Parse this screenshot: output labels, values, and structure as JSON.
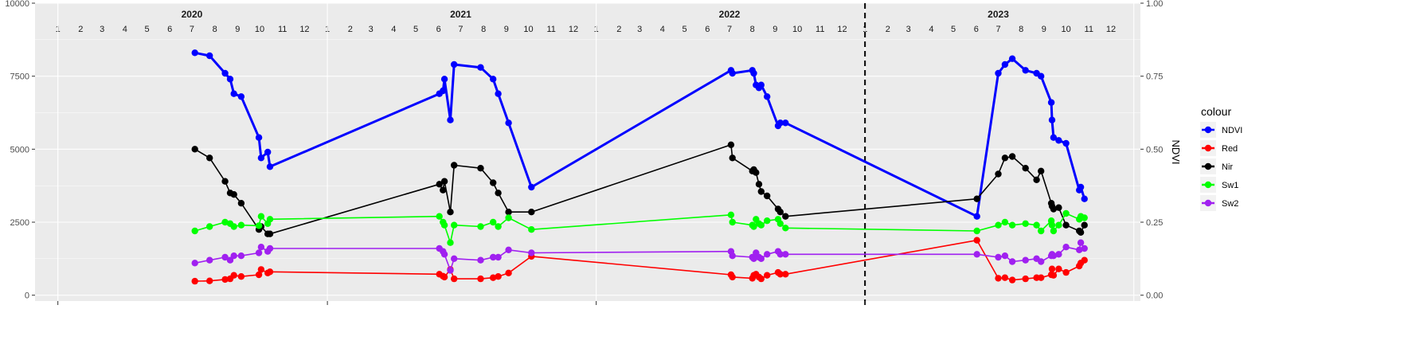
{
  "chart_data": {
    "type": "line",
    "title": "",
    "xlabel": "",
    "ylabel": "",
    "y2label": "NDVI",
    "ylim": [
      0,
      10000
    ],
    "y2lim": [
      0,
      1
    ],
    "yticks": [
      "0",
      "2500",
      "5000",
      "7500",
      "10000"
    ],
    "y2ticks": [
      "0.00",
      "0.25",
      "0.50",
      "0.75",
      "1.00"
    ],
    "xlim": [
      "2020-01-01",
      "2023-12-31"
    ],
    "years": [
      "2020",
      "2021",
      "2022",
      "2023"
    ],
    "months": [
      "1",
      "2",
      "3",
      "4",
      "5",
      "6",
      "7",
      "8",
      "9",
      "10",
      "11",
      "12"
    ],
    "vline": "2023-01-01",
    "grid": true,
    "legend": {
      "title": "colour",
      "position": "right"
    },
    "series": [
      {
        "name": "NDVI",
        "color": "#0000FF",
        "axis": "right",
        "x": [
          "2020-07-05",
          "2020-07-25",
          "2020-08-15",
          "2020-08-22",
          "2020-08-27",
          "2020-09-06",
          "2020-09-30",
          "2020-10-03",
          "2020-10-12",
          "2020-10-15",
          "2021-06-02",
          "2021-06-07",
          "2021-06-09",
          "2021-06-17",
          "2021-06-22",
          "2021-07-28",
          "2021-08-14",
          "2021-08-21",
          "2021-09-04",
          "2021-10-05",
          "2022-07-03",
          "2022-07-05",
          "2022-08-01",
          "2022-08-03",
          "2022-08-06",
          "2022-08-10",
          "2022-08-13",
          "2022-08-21",
          "2022-09-05",
          "2022-09-08",
          "2022-09-15",
          "2023-06-02",
          "2023-07-01",
          "2023-07-10",
          "2023-07-20",
          "2023-08-07",
          "2023-08-22",
          "2023-08-28",
          "2023-09-11",
          "2023-09-12",
          "2023-09-14",
          "2023-09-21",
          "2023-10-01",
          "2023-10-19",
          "2023-10-21",
          "2023-10-26"
        ],
        "values": [
          0.83,
          0.82,
          0.76,
          0.74,
          0.69,
          0.68,
          0.54,
          0.47,
          0.49,
          0.44,
          0.69,
          0.7,
          0.74,
          0.6,
          0.79,
          0.78,
          0.74,
          0.69,
          0.59,
          0.37,
          0.77,
          0.76,
          0.77,
          0.76,
          0.72,
          0.71,
          0.72,
          0.68,
          0.58,
          0.59,
          0.59,
          0.27,
          0.76,
          0.79,
          0.81,
          0.77,
          0.76,
          0.75,
          0.66,
          0.6,
          0.54,
          0.53,
          0.52,
          0.36,
          0.37,
          0.33
        ]
      },
      {
        "name": "Red",
        "color": "#FF0000",
        "axis": "left",
        "x": [
          "2020-07-05",
          "2020-07-25",
          "2020-08-15",
          "2020-08-22",
          "2020-08-27",
          "2020-09-06",
          "2020-09-30",
          "2020-10-03",
          "2020-10-12",
          "2020-10-15",
          "2021-06-02",
          "2021-06-07",
          "2021-06-09",
          "2021-06-17",
          "2021-06-22",
          "2021-07-28",
          "2021-08-14",
          "2021-08-21",
          "2021-09-04",
          "2021-10-05",
          "2022-07-03",
          "2022-07-05",
          "2022-08-01",
          "2022-08-03",
          "2022-08-06",
          "2022-08-10",
          "2022-08-13",
          "2022-08-21",
          "2022-09-05",
          "2022-09-08",
          "2022-09-15",
          "2023-06-02",
          "2023-07-01",
          "2023-07-10",
          "2023-07-20",
          "2023-08-07",
          "2023-08-22",
          "2023-08-28",
          "2023-09-11",
          "2023-09-12",
          "2023-09-14",
          "2023-09-21",
          "2023-10-01",
          "2023-10-19",
          "2023-10-21",
          "2023-10-26"
        ],
        "values": [
          480,
          490,
          540,
          560,
          680,
          640,
          700,
          880,
          760,
          800,
          720,
          650,
          620,
          880,
          560,
          560,
          600,
          640,
          760,
          1330,
          700,
          620,
          580,
          680,
          720,
          620,
          560,
          680,
          780,
          720,
          720,
          1880,
          580,
          600,
          520,
          560,
          600,
          600,
          700,
          900,
          680,
          900,
          780,
          1000,
          1100,
          1200
        ]
      },
      {
        "name": "Nir",
        "color": "#000000",
        "axis": "left",
        "x": [
          "2020-07-05",
          "2020-07-25",
          "2020-08-15",
          "2020-08-22",
          "2020-08-27",
          "2020-09-06",
          "2020-09-30",
          "2020-10-03",
          "2020-10-12",
          "2020-10-15",
          "2021-06-02",
          "2021-06-07",
          "2021-06-09",
          "2021-06-17",
          "2021-06-22",
          "2021-07-28",
          "2021-08-14",
          "2021-08-21",
          "2021-09-04",
          "2021-10-05",
          "2022-07-03",
          "2022-07-05",
          "2022-08-01",
          "2022-08-03",
          "2022-08-06",
          "2022-08-10",
          "2022-08-13",
          "2022-08-21",
          "2022-09-05",
          "2022-09-08",
          "2022-09-15",
          "2023-06-02",
          "2023-07-01",
          "2023-07-10",
          "2023-07-20",
          "2023-08-07",
          "2023-08-22",
          "2023-08-28",
          "2023-09-11",
          "2023-09-12",
          "2023-09-14",
          "2023-09-21",
          "2023-10-01",
          "2023-10-19",
          "2023-10-21",
          "2023-10-26"
        ],
        "values": [
          5000,
          4700,
          3900,
          3500,
          3450,
          3150,
          2250,
          2350,
          2100,
          2100,
          3800,
          3600,
          3900,
          2850,
          4450,
          4350,
          3850,
          3500,
          2850,
          2850,
          5150,
          4700,
          4250,
          4300,
          4200,
          3800,
          3550,
          3400,
          2950,
          2850,
          2700,
          3300,
          4150,
          4700,
          4750,
          4350,
          3950,
          4250,
          3150,
          3050,
          2950,
          3000,
          2400,
          2200,
          2150,
          2400
        ]
      },
      {
        "name": "Sw1",
        "color": "#00FF00",
        "axis": "left",
        "x": [
          "2020-07-05",
          "2020-07-25",
          "2020-08-15",
          "2020-08-22",
          "2020-08-27",
          "2020-09-06",
          "2020-09-30",
          "2020-10-03",
          "2020-10-12",
          "2020-10-15",
          "2021-06-02",
          "2021-06-07",
          "2021-06-09",
          "2021-06-17",
          "2021-06-22",
          "2021-07-28",
          "2021-08-14",
          "2021-08-21",
          "2021-09-04",
          "2021-10-05",
          "2022-07-03",
          "2022-07-05",
          "2022-08-01",
          "2022-08-03",
          "2022-08-06",
          "2022-08-10",
          "2022-08-13",
          "2022-08-21",
          "2022-09-05",
          "2022-09-08",
          "2022-09-15",
          "2023-06-02",
          "2023-07-01",
          "2023-07-10",
          "2023-07-20",
          "2023-08-07",
          "2023-08-22",
          "2023-08-28",
          "2023-09-11",
          "2023-09-12",
          "2023-09-14",
          "2023-09-21",
          "2023-10-01",
          "2023-10-19",
          "2023-10-21",
          "2023-10-26"
        ],
        "values": [
          2200,
          2350,
          2500,
          2450,
          2350,
          2400,
          2380,
          2700,
          2450,
          2600,
          2700,
          2500,
          2400,
          1800,
          2400,
          2350,
          2500,
          2350,
          2650,
          2250,
          2750,
          2500,
          2400,
          2350,
          2600,
          2450,
          2400,
          2550,
          2600,
          2450,
          2300,
          2200,
          2400,
          2500,
          2400,
          2450,
          2400,
          2200,
          2550,
          2400,
          2200,
          2400,
          2800,
          2600,
          2700,
          2650
        ]
      },
      {
        "name": "Sw2",
        "color": "#A020F0",
        "axis": "left",
        "x": [
          "2020-07-05",
          "2020-07-25",
          "2020-08-15",
          "2020-08-22",
          "2020-08-27",
          "2020-09-06",
          "2020-09-30",
          "2020-10-03",
          "2020-10-12",
          "2020-10-15",
          "2021-06-02",
          "2021-06-07",
          "2021-06-09",
          "2021-06-17",
          "2021-06-22",
          "2021-07-28",
          "2021-08-14",
          "2021-08-21",
          "2021-09-04",
          "2021-10-05",
          "2022-07-03",
          "2022-07-05",
          "2022-08-01",
          "2022-08-03",
          "2022-08-06",
          "2022-08-10",
          "2022-08-13",
          "2022-08-21",
          "2022-09-05",
          "2022-09-08",
          "2022-09-15",
          "2023-06-02",
          "2023-07-01",
          "2023-07-10",
          "2023-07-20",
          "2023-08-07",
          "2023-08-22",
          "2023-08-28",
          "2023-09-11",
          "2023-09-12",
          "2023-09-14",
          "2023-09-21",
          "2023-10-01",
          "2023-10-19",
          "2023-10-21",
          "2023-10-26"
        ],
        "values": [
          1100,
          1200,
          1300,
          1200,
          1350,
          1350,
          1450,
          1650,
          1500,
          1600,
          1600,
          1500,
          1400,
          850,
          1250,
          1200,
          1300,
          1300,
          1550,
          1450,
          1500,
          1350,
          1300,
          1250,
          1450,
          1300,
          1250,
          1400,
          1500,
          1400,
          1400,
          1400,
          1300,
          1350,
          1150,
          1200,
          1250,
          1150,
          1350,
          1400,
          1350,
          1400,
          1650,
          1550,
          1800,
          1600
        ]
      }
    ]
  }
}
